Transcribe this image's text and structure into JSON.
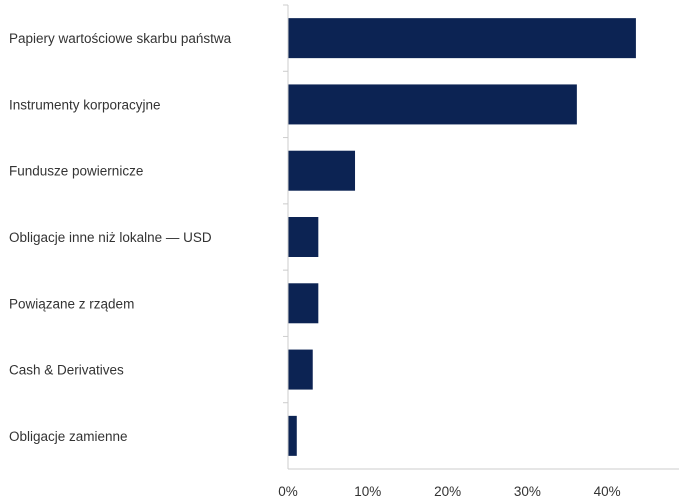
{
  "chart_data": {
    "type": "bar",
    "orientation": "horizontal",
    "categories": [
      "Papiery wartościowe skarbu państwa",
      "Instrumenty korporacyjne",
      "Fundusze powiernicze",
      "Obligacje inne niż lokalne — USD",
      "Powiązane z rządem",
      "Cash & Derivatives",
      "Obligacje zamienne"
    ],
    "values": [
      43.6,
      36.2,
      8.4,
      3.8,
      3.8,
      3.1,
      1.1
    ],
    "value_unit": "%",
    "xlim": [
      0,
      49
    ],
    "xticks": [
      0,
      10,
      20,
      30,
      40
    ],
    "xtick_labels": [
      "0%",
      "10%",
      "20%",
      "30%",
      "40%"
    ],
    "bar_color": "#0c2353",
    "axis_color": "#cccccc",
    "grid": false,
    "legend": "none"
  }
}
